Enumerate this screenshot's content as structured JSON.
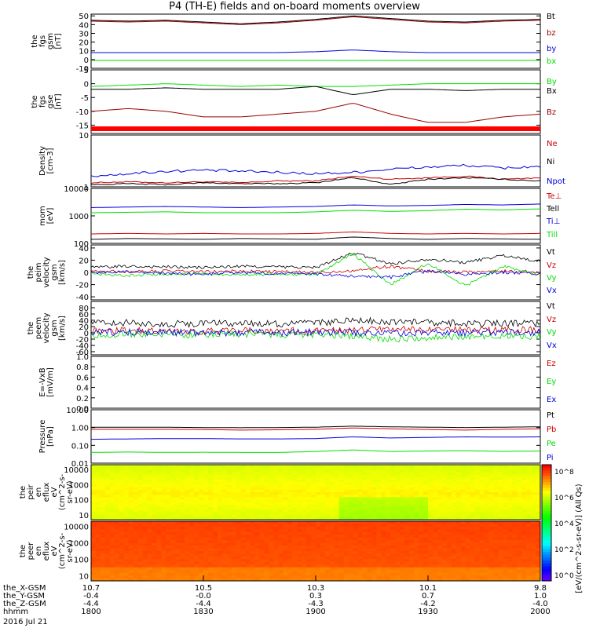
{
  "title": "P4 (TH-E) fields and on-board moments overview",
  "colors": {
    "black": "#000000",
    "red": "#cc0000",
    "green": "#00dd00",
    "blue": "#0000dd",
    "darkred": "#990000"
  },
  "chart_data": [
    {
      "type": "line",
      "panel": "fgs_gsm",
      "ylabel": [
        "the",
        "fgs",
        "gsm",
        "[nT]"
      ],
      "ylim": [
        -10,
        52
      ],
      "yticks": [
        "50",
        "40",
        "30",
        "20",
        "10",
        "0",
        "-10"
      ],
      "series": [
        {
          "name": "Bt",
          "color": "black",
          "values": [
            45,
            44,
            45,
            43,
            41,
            43,
            46,
            50,
            47,
            44,
            43,
            45,
            46
          ]
        },
        {
          "name": "bz",
          "color": "darkred",
          "values": [
            44,
            43,
            44,
            42,
            40,
            42,
            45,
            49,
            46,
            43,
            42,
            44,
            45
          ]
        },
        {
          "name": "by",
          "color": "blue",
          "values": [
            8,
            8,
            8,
            8,
            8,
            8,
            9,
            11,
            9,
            8,
            8,
            8,
            8
          ]
        },
        {
          "name": "bx",
          "color": "green",
          "values": [
            -1,
            -1,
            -1,
            -1,
            -1,
            -1,
            -1,
            -1,
            -1,
            -1,
            -1,
            -1,
            -1
          ]
        }
      ]
    },
    {
      "type": "line",
      "panel": "fgs_gse",
      "ylabel": [
        "the",
        "fgs",
        "gse",
        "[nT]"
      ],
      "ylim": [
        -18,
        5
      ],
      "yticks": [
        "5",
        "0",
        "-5",
        "-10",
        "-15"
      ],
      "series": [
        {
          "name": "By",
          "color": "green",
          "values": [
            -1,
            -0.5,
            0,
            -0.5,
            -1,
            -0.5,
            -1,
            -1,
            -0.5,
            0,
            0,
            0,
            0
          ]
        },
        {
          "name": "Bx",
          "color": "black",
          "values": [
            -2,
            -2,
            -1.5,
            -2,
            -2,
            -2,
            -1,
            -4,
            -2,
            -2,
            -2.5,
            -2,
            -2
          ]
        },
        {
          "name": "Bz",
          "color": "darkred",
          "values": [
            -10,
            -9,
            -10,
            -12,
            -12,
            -11,
            -10,
            -7,
            -11,
            -14,
            -14,
            -12,
            -11
          ]
        }
      ]
    },
    {
      "type": "line",
      "panel": "density",
      "ylabel": [
        "Density",
        "[cm-3]"
      ],
      "ylog": true,
      "ylim": [
        1,
        10
      ],
      "yticks": [
        "10",
        "1"
      ],
      "series": [
        {
          "name": "Ne",
          "color": "red",
          "values": [
            1.2,
            1.25,
            1.2,
            1.25,
            1.2,
            1.3,
            1.3,
            1.6,
            1.4,
            1.5,
            1.6,
            1.4,
            1.5
          ]
        },
        {
          "name": "Ni",
          "color": "black",
          "values": [
            1.1,
            1.15,
            1.1,
            1.2,
            1.15,
            1.15,
            1.2,
            1.5,
            1.1,
            1.4,
            1.5,
            1.4,
            1.3
          ]
        },
        {
          "name": "Npot",
          "color": "blue",
          "values": [
            1.6,
            1.8,
            2.0,
            2.1,
            2.0,
            1.9,
            1.8,
            1.9,
            2.2,
            2.4,
            2.6,
            2.3,
            2.5
          ]
        }
      ]
    },
    {
      "type": "line",
      "panel": "temperature",
      "ylabel": [
        "mom",
        "[eV]"
      ],
      "ylog": true,
      "ylim": [
        100,
        10000
      ],
      "yticks": [
        "10000",
        "1000",
        "100"
      ],
      "series": [
        {
          "name": "Te⊥",
          "color": "red",
          "values": [
            220,
            230,
            220,
            230,
            220,
            220,
            230,
            260,
            230,
            220,
            230,
            220,
            230
          ]
        },
        {
          "name": "Tell",
          "color": "black",
          "values": [
            140,
            150,
            145,
            140,
            150,
            145,
            140,
            170,
            150,
            140,
            150,
            145,
            140
          ]
        },
        {
          "name": "Ti⊥",
          "color": "blue",
          "values": [
            2000,
            2100,
            2200,
            2100,
            2000,
            2100,
            2200,
            2500,
            2300,
            2400,
            2600,
            2500,
            2700
          ]
        },
        {
          "name": "Till",
          "color": "green",
          "values": [
            1300,
            1350,
            1400,
            1300,
            1300,
            1300,
            1400,
            1600,
            1450,
            1550,
            1750,
            1650,
            1800
          ]
        }
      ]
    },
    {
      "type": "line",
      "panel": "peim_velocity",
      "ylabel": [
        "the",
        "peim",
        "velocity",
        "gsm",
        "[km/s]"
      ],
      "ylim": [
        -45,
        45
      ],
      "yticks": [
        "40",
        "20",
        "0",
        "-20",
        "-40"
      ],
      "series": [
        {
          "name": "Vt",
          "color": "black",
          "values": [
            8,
            10,
            9,
            8,
            10,
            9,
            8,
            32,
            14,
            22,
            16,
            28,
            18
          ]
        },
        {
          "name": "Vz",
          "color": "red",
          "values": [
            2,
            1,
            2,
            1,
            2,
            1,
            0,
            3,
            10,
            2,
            1,
            2,
            1
          ]
        },
        {
          "name": "Vy",
          "color": "green",
          "values": [
            -2,
            -5,
            -3,
            -2,
            -4,
            -3,
            -4,
            30,
            -20,
            15,
            -22,
            10,
            -4
          ]
        },
        {
          "name": "Vx",
          "color": "blue",
          "values": [
            0,
            2,
            -2,
            -3,
            0,
            -2,
            -3,
            -6,
            -8,
            2,
            -3,
            0,
            -2
          ]
        }
      ]
    },
    {
      "type": "line",
      "panel": "peem_velocity",
      "ylabel": [
        "the",
        "peem",
        "velocity",
        "gsm",
        "[km/s]"
      ],
      "ylim": [
        -70,
        100
      ],
      "yticks": [
        "80",
        "60",
        "40",
        "20",
        "0",
        "-20",
        "-40",
        "-60"
      ],
      "series": [
        {
          "name": "Vt",
          "color": "black",
          "values": [
            30,
            32,
            28,
            30,
            31,
            29,
            30,
            40,
            36,
            32,
            30,
            31,
            30
          ]
        },
        {
          "name": "Vz",
          "color": "red",
          "values": [
            5,
            8,
            6,
            5,
            7,
            6,
            5,
            10,
            12,
            8,
            9,
            8,
            10
          ]
        },
        {
          "name": "Vy",
          "color": "green",
          "values": [
            -5,
            -4,
            -6,
            -5,
            -5,
            -6,
            -5,
            -10,
            -20,
            -15,
            -12,
            -10,
            -12
          ]
        },
        {
          "name": "Vx",
          "color": "blue",
          "values": [
            0,
            2,
            1,
            0,
            1,
            0,
            2,
            0,
            -2,
            1,
            0,
            2,
            1
          ]
        }
      ]
    },
    {
      "type": "line",
      "panel": "efield",
      "ylabel": [
        "E=-VxB",
        "[mV/m]"
      ],
      "ylim": [
        0,
        1
      ],
      "yticks": [
        "1.0",
        "0.8",
        "0.6",
        "0.4",
        "0.2",
        "0.0"
      ],
      "series": [
        {
          "name": "Ez",
          "color": "red",
          "values": []
        },
        {
          "name": "Ey",
          "color": "green",
          "values": []
        },
        {
          "name": "Ex",
          "color": "blue",
          "values": []
        }
      ]
    },
    {
      "type": "line",
      "panel": "pressure",
      "ylabel": [
        "Pressure",
        "[nPa]"
      ],
      "ylog": true,
      "ylim": [
        0.01,
        10
      ],
      "yticks": [
        "10.00",
        "1.00",
        "0.10",
        "0.01"
      ],
      "series": [
        {
          "name": "Pt",
          "color": "black",
          "values": [
            1.05,
            1.05,
            1.04,
            1.0,
            0.98,
            1.0,
            1.05,
            1.2,
            1.1,
            1.05,
            1.0,
            1.05,
            1.1
          ]
        },
        {
          "name": "Pb",
          "color": "red",
          "values": [
            0.8,
            0.8,
            0.8,
            0.78,
            0.72,
            0.75,
            0.8,
            0.95,
            0.85,
            0.78,
            0.72,
            0.8,
            0.85
          ]
        },
        {
          "name": "Pe",
          "color": "green",
          "values": [
            0.04,
            0.042,
            0.04,
            0.041,
            0.04,
            0.04,
            0.045,
            0.055,
            0.045,
            0.048,
            0.05,
            0.046,
            0.048
          ]
        },
        {
          "name": "Pi",
          "color": "blue",
          "values": [
            0.22,
            0.23,
            0.24,
            0.24,
            0.23,
            0.23,
            0.24,
            0.3,
            0.26,
            0.28,
            0.3,
            0.29,
            0.3
          ]
        }
      ]
    },
    {
      "type": "heatmap",
      "panel": "peir_en_eflux",
      "ylabel": [
        "the",
        "peir",
        "en",
        "eflux",
        "eV",
        "(cm^2-s-",
        "sr-eV)"
      ],
      "ylog": true,
      "ylim": [
        5,
        20000
      ],
      "yticks": [
        "10000",
        "1000",
        "100",
        "10"
      ]
    },
    {
      "type": "heatmap",
      "panel": "peer_en_eflux",
      "ylabel": [
        "the",
        "peer",
        "en",
        "eflux",
        "eV",
        "(cm^2-s-",
        "sr-eV)"
      ],
      "ylog": true,
      "ylim": [
        5,
        20000
      ],
      "yticks": [
        "10000",
        "1000",
        "100",
        "10"
      ]
    }
  ],
  "colorbar": {
    "label": "[eV/(cm^2-s-sr-eV)] (All Qs)",
    "ticks": [
      "10^8",
      "10^6",
      "10^4",
      "10^2",
      "10^0"
    ]
  },
  "xaxis": {
    "rows": [
      {
        "label": "the_X-GSM",
        "values": [
          "10.7",
          "10.5",
          "10.3",
          "10.1",
          "9.8"
        ]
      },
      {
        "label": "the_Y-GSM",
        "values": [
          "-0.4",
          "-0.0",
          "0.3",
          "0.7",
          "1.0"
        ]
      },
      {
        "label": "the_Z-GSM",
        "values": [
          "-4.4",
          "-4.4",
          "-4.3",
          "-4.2",
          "-4.0"
        ]
      },
      {
        "label": "hhmm",
        "values": [
          "1800",
          "1830",
          "1900",
          "1930",
          "2000"
        ]
      }
    ],
    "date": "2016 Jul 21"
  }
}
